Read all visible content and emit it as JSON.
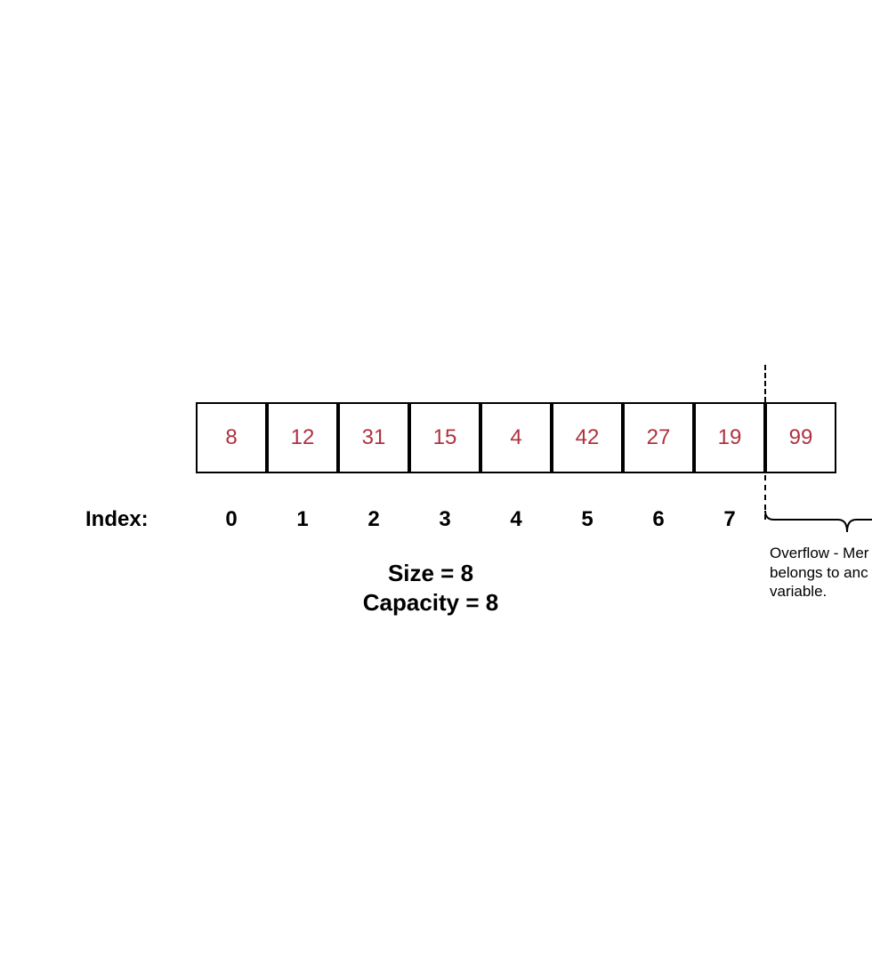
{
  "array": {
    "values": [
      "8",
      "12",
      "31",
      "15",
      "4",
      "42",
      "27",
      "19",
      "99"
    ],
    "indices": [
      "0",
      "1",
      "2",
      "3",
      "4",
      "5",
      "6",
      "7"
    ],
    "index_label": "Index:",
    "value_color": "#b0313f"
  },
  "summary": {
    "size": "Size = 8",
    "capacity": "Capacity = 8"
  },
  "overflow_note": {
    "line1": "Overflow - Mer",
    "line2": "belongs to anc",
    "line3": "variable."
  }
}
